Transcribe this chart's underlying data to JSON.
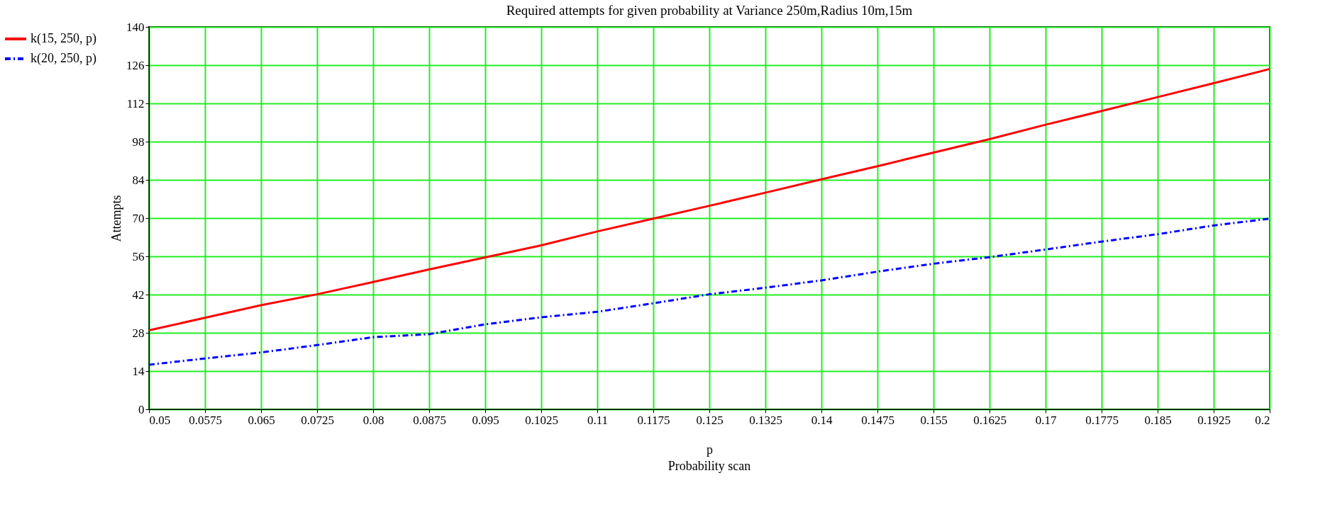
{
  "chart_data": {
    "type": "line",
    "title": "Required attempts for given probability at Variance 250m,Radius 10m,15m",
    "xlabel": "p",
    "ylabel": "Attempts",
    "annotations": [
      "Probability scan"
    ],
    "x": [
      0.05,
      0.0575,
      0.065,
      0.0725,
      0.08,
      0.0875,
      0.095,
      0.1025,
      0.11,
      0.1175,
      0.125,
      0.1325,
      0.14,
      0.1475,
      0.155,
      0.1625,
      0.17,
      0.1775,
      0.185,
      0.1925,
      0.2
    ],
    "series": [
      {
        "name": "k(15, 250, p)",
        "color": "#ff0000",
        "line_style": "solid",
        "values": [
          28.9,
          33.5,
          38.1,
          42.1,
          46.6,
          51.2,
          55.6,
          60.0,
          65.1,
          69.8,
          74.5,
          79.3,
          84.2,
          89.0,
          94.0,
          98.9,
          104.2,
          109.2,
          114.3,
          119.4,
          124.6
        ]
      },
      {
        "name": "k(20, 250, p)",
        "color": "#0000ff",
        "line_style": "dashed",
        "values": [
          16.3,
          18.6,
          20.8,
          23.5,
          26.4,
          27.5,
          31.1,
          33.7,
          35.7,
          38.8,
          42.1,
          44.5,
          47.2,
          50.4,
          53.3,
          55.7,
          58.5,
          61.4,
          64.1,
          67.3,
          69.8
        ]
      }
    ],
    "xlim": [
      0.05,
      0.2
    ],
    "xticks": [
      0.05,
      0.0575,
      0.065,
      0.0725,
      0.08,
      0.0875,
      0.095,
      0.1025,
      0.11,
      0.1175,
      0.125,
      0.1325,
      0.14,
      0.1475,
      0.155,
      0.1625,
      0.17,
      0.1775,
      0.185,
      0.1925,
      0.2
    ],
    "ylim": [
      0,
      140
    ],
    "yticks": [
      0,
      14,
      28,
      42,
      56,
      70,
      84,
      98,
      112,
      126,
      140
    ],
    "grid": true,
    "legend": "left",
    "marker": "none"
  }
}
